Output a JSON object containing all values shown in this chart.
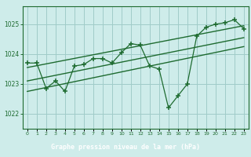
{
  "bg_color": "#ceecea",
  "plot_bg_color": "#ceecea",
  "footer_bg_color": "#2d6e3e",
  "grid_color": "#a0ccc8",
  "line_color": "#1e6b30",
  "spine_color": "#1e6b30",
  "title": "Graphe pression niveau de la mer (hPa)",
  "title_color": "#ffffff",
  "xlim": [
    -0.5,
    23.5
  ],
  "ylim": [
    1021.5,
    1025.6
  ],
  "yticks": [
    1022,
    1023,
    1024,
    1025
  ],
  "xtick_labels": [
    "0",
    "1",
    "2",
    "3",
    "4",
    "5",
    "6",
    "7",
    "8",
    "9",
    "10",
    "11",
    "12",
    "13",
    "14",
    "15",
    "16",
    "17",
    "18",
    "19",
    "20",
    "21",
    "22",
    "23"
  ],
  "pressure_data": [
    1023.7,
    1023.7,
    1022.85,
    1023.1,
    1022.75,
    1023.6,
    1023.65,
    1023.85,
    1023.85,
    1023.7,
    1024.05,
    1024.35,
    1024.3,
    1023.6,
    1023.5,
    1022.2,
    1022.6,
    1023.0,
    1024.6,
    1024.9,
    1025.0,
    1025.05,
    1025.15,
    1024.85
  ],
  "trend_lines": [
    [
      1023.55,
      1024.95
    ],
    [
      1023.1,
      1024.55
    ],
    [
      1022.75,
      1024.25
    ]
  ]
}
